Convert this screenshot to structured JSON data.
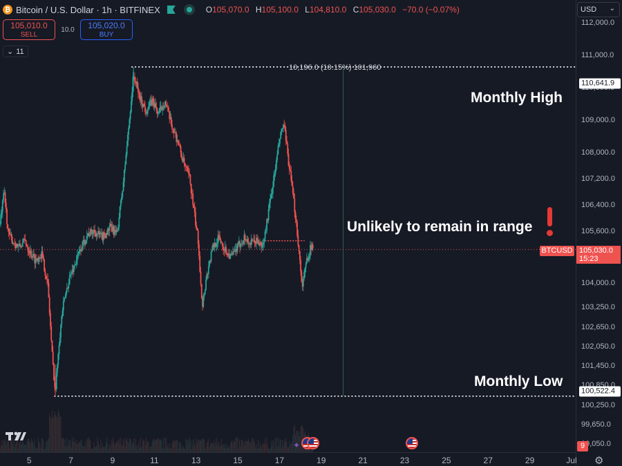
{
  "header": {
    "logo_glyph": "₿",
    "title": "Bitcoin / U.S. Dollar · 1h · BITFINEX",
    "ohlc": [
      {
        "k": "O",
        "v": "105,070.0"
      },
      {
        "k": "H",
        "v": "105,100.0"
      },
      {
        "k": "L",
        "v": "104,810.0"
      },
      {
        "k": "C",
        "v": "105,030.0"
      }
    ],
    "change": "−70.0 (−0.07%)",
    "icons": [
      "bitcoin-logo-icon",
      "flag-icon",
      "live-dot-icon"
    ]
  },
  "trade": {
    "sell_price": "105,010.0",
    "sell_label": "SELL",
    "spread": "10.0",
    "buy_price": "105,020.0",
    "buy_label": "BUY"
  },
  "indicators": {
    "collapse_icon": "chevron-down-icon",
    "count": "11"
  },
  "currency_select": {
    "value": "USD",
    "icon": "chevron-down-icon"
  },
  "price_scale": {
    "ticks": [
      "112,000.0",
      "111,000.0",
      "110,000.0",
      "109,000.0",
      "108,000.0",
      "107,200.0",
      "106,400.0",
      "105,600.0",
      "104,000.0",
      "103,250.0",
      "102,650.0",
      "102,050.0",
      "101,450.0",
      "100,850.0",
      "100,250.0",
      "99,650.0",
      "99,050.0"
    ],
    "monthly_high_label": "110,641.9",
    "monthly_low_label": "100,522.4",
    "last_price": "105,030.0",
    "countdown": "15:23",
    "symbol_tag": "BTCUSD",
    "badge": "9"
  },
  "time_scale": {
    "ticks": [
      "5",
      "7",
      "9",
      "11",
      "13",
      "15",
      "17",
      "19",
      "21",
      "23",
      "25",
      "27",
      "29",
      "Jul"
    ],
    "settings_icon": "gear-icon"
  },
  "annotations": {
    "monthly_high": "Monthly High",
    "monthly_low": "Monthly Low",
    "range_note": "Unlikely to remain in range",
    "measure": "10,196.0 (10.15%) 101,960",
    "exclamation_icon": "exclamation-icon"
  },
  "events": {
    "icon": "us-flag-icon",
    "extra_icon": "star-icon",
    "dates": [
      "Jun 18",
      "Jun 18",
      "Jun 23"
    ]
  },
  "colors": {
    "background": "#161a25",
    "up": "#26a69a",
    "down": "#ef5350",
    "accent_buy": "#2962ff",
    "grid": "#1e222d"
  },
  "chart_data": {
    "type": "candlestick",
    "title": "",
    "symbol": "BTCUSD",
    "exchange": "BITFINEX",
    "interval": "1h",
    "x_unit": "day of month (June)",
    "xlim": [
      3.6,
      31.2
    ],
    "ylim": [
      98800,
      112700
    ],
    "grid": false,
    "levels": [
      {
        "name": "Monthly High",
        "value": 110641.9,
        "x_start": 9.9,
        "x_end": 31.2
      },
      {
        "name": "Monthly Low",
        "value": 100522.4,
        "x_start": 6.2,
        "x_end": 31.2
      }
    ],
    "last_price": 105030.0,
    "price_path": [
      {
        "x": 3.6,
        "y": 105800
      },
      {
        "x": 3.8,
        "y": 106800
      },
      {
        "x": 4.0,
        "y": 105500
      },
      {
        "x": 4.2,
        "y": 105300
      },
      {
        "x": 4.5,
        "y": 105100
      },
      {
        "x": 4.8,
        "y": 105300
      },
      {
        "x": 5.0,
        "y": 105000
      },
      {
        "x": 5.3,
        "y": 104700
      },
      {
        "x": 5.6,
        "y": 104900
      },
      {
        "x": 5.9,
        "y": 103900
      },
      {
        "x": 6.1,
        "y": 101800
      },
      {
        "x": 6.25,
        "y": 100600
      },
      {
        "x": 6.4,
        "y": 102000
      },
      {
        "x": 6.6,
        "y": 103200
      },
      {
        "x": 6.9,
        "y": 104100
      },
      {
        "x": 7.2,
        "y": 104600
      },
      {
        "x": 7.5,
        "y": 105100
      },
      {
        "x": 7.8,
        "y": 105500
      },
      {
        "x": 8.1,
        "y": 105600
      },
      {
        "x": 8.5,
        "y": 105400
      },
      {
        "x": 8.9,
        "y": 105700
      },
      {
        "x": 9.2,
        "y": 105500
      },
      {
        "x": 9.5,
        "y": 107000
      },
      {
        "x": 9.8,
        "y": 109000
      },
      {
        "x": 10.0,
        "y": 110400
      },
      {
        "x": 10.3,
        "y": 109700
      },
      {
        "x": 10.6,
        "y": 109300
      },
      {
        "x": 10.9,
        "y": 109600
      },
      {
        "x": 11.2,
        "y": 109200
      },
      {
        "x": 11.5,
        "y": 109600
      },
      {
        "x": 11.8,
        "y": 108900
      },
      {
        "x": 12.1,
        "y": 108400
      },
      {
        "x": 12.4,
        "y": 107700
      },
      {
        "x": 12.7,
        "y": 107200
      },
      {
        "x": 12.9,
        "y": 106200
      },
      {
        "x": 13.1,
        "y": 105300
      },
      {
        "x": 13.3,
        "y": 103300
      },
      {
        "x": 13.5,
        "y": 104200
      },
      {
        "x": 13.8,
        "y": 105100
      },
      {
        "x": 14.1,
        "y": 105400
      },
      {
        "x": 14.4,
        "y": 105000
      },
      {
        "x": 14.7,
        "y": 104800
      },
      {
        "x": 15.0,
        "y": 105100
      },
      {
        "x": 15.3,
        "y": 105400
      },
      {
        "x": 15.6,
        "y": 105200
      },
      {
        "x": 15.9,
        "y": 105300
      },
      {
        "x": 16.2,
        "y": 105100
      },
      {
        "x": 16.5,
        "y": 106300
      },
      {
        "x": 16.8,
        "y": 107500
      },
      {
        "x": 17.0,
        "y": 108400
      },
      {
        "x": 17.2,
        "y": 108900
      },
      {
        "x": 17.4,
        "y": 107900
      },
      {
        "x": 17.6,
        "y": 106900
      },
      {
        "x": 17.8,
        "y": 105900
      },
      {
        "x": 18.0,
        "y": 104500
      },
      {
        "x": 18.1,
        "y": 103900
      },
      {
        "x": 18.3,
        "y": 104700
      },
      {
        "x": 18.5,
        "y": 105100
      },
      {
        "x": 18.6,
        "y": 105030
      }
    ],
    "volume_note": "per-candle volume bars along bottom"
  }
}
